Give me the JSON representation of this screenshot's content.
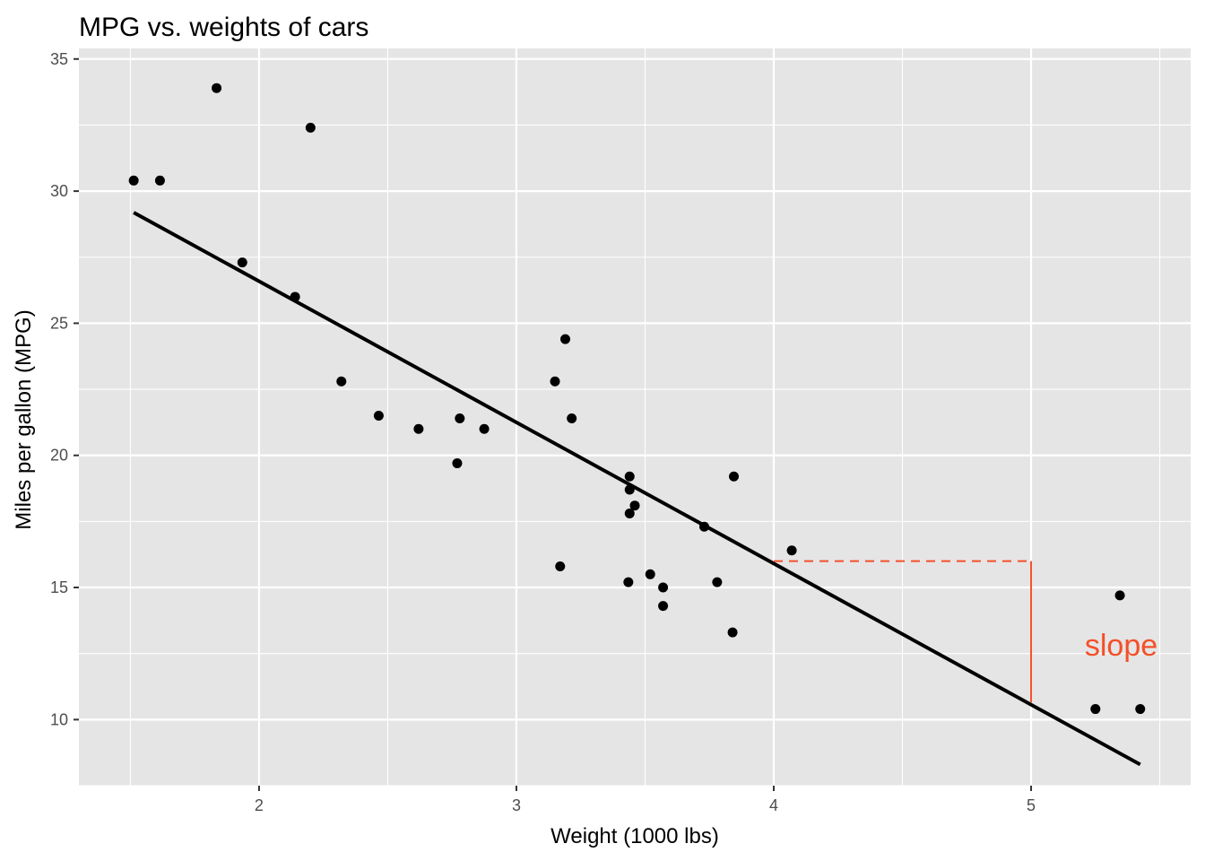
{
  "chart_data": {
    "type": "scatter",
    "title": "MPG vs. weights of cars",
    "xlabel": "Weight (1000 lbs)",
    "ylabel": "Miles per gallon (MPG)",
    "xlim": [
      1.3,
      5.62
    ],
    "ylim": [
      7.5,
      35.4
    ],
    "x_ticks": [
      2,
      3,
      4,
      5
    ],
    "x_tick_labels": [
      "2",
      "3",
      "4",
      "5"
    ],
    "y_ticks": [
      10,
      15,
      20,
      25,
      30,
      35
    ],
    "y_tick_labels": [
      "10",
      "15",
      "20",
      "25",
      "30",
      "35"
    ],
    "grid": true,
    "background_color": "#e5e5e5",
    "point_color": "#000000",
    "points": [
      {
        "x": 2.62,
        "y": 21.0
      },
      {
        "x": 2.875,
        "y": 21.0
      },
      {
        "x": 2.32,
        "y": 22.8
      },
      {
        "x": 3.215,
        "y": 21.4
      },
      {
        "x": 3.44,
        "y": 18.7
      },
      {
        "x": 3.46,
        "y": 18.1
      },
      {
        "x": 3.57,
        "y": 14.3
      },
      {
        "x": 3.19,
        "y": 24.4
      },
      {
        "x": 3.15,
        "y": 22.8
      },
      {
        "x": 3.44,
        "y": 19.2
      },
      {
        "x": 3.44,
        "y": 17.8
      },
      {
        "x": 4.07,
        "y": 16.4
      },
      {
        "x": 3.73,
        "y": 17.3
      },
      {
        "x": 3.78,
        "y": 15.2
      },
      {
        "x": 5.25,
        "y": 10.4
      },
      {
        "x": 5.424,
        "y": 10.4
      },
      {
        "x": 5.345,
        "y": 14.7
      },
      {
        "x": 2.2,
        "y": 32.4
      },
      {
        "x": 1.615,
        "y": 30.4
      },
      {
        "x": 1.835,
        "y": 33.9
      },
      {
        "x": 2.465,
        "y": 21.5
      },
      {
        "x": 3.52,
        "y": 15.5
      },
      {
        "x": 3.435,
        "y": 15.2
      },
      {
        "x": 3.84,
        "y": 13.3
      },
      {
        "x": 3.845,
        "y": 19.2
      },
      {
        "x": 1.935,
        "y": 27.3
      },
      {
        "x": 2.14,
        "y": 26.0
      },
      {
        "x": 1.513,
        "y": 30.4
      },
      {
        "x": 3.17,
        "y": 15.8
      },
      {
        "x": 2.77,
        "y": 19.7
      },
      {
        "x": 3.57,
        "y": 15.0
      },
      {
        "x": 2.78,
        "y": 21.4
      }
    ],
    "regression_line": {
      "x1": 1.513,
      "y1": 29.19,
      "x2": 5.424,
      "y2": 8.3,
      "color": "#000000"
    },
    "annotation": {
      "text": "slope",
      "color": "#f4502a",
      "position": {
        "x": 5.35,
        "y": 12.8
      },
      "horizontal_dashed": {
        "x1": 4,
        "x2": 5,
        "y": 16
      },
      "vertical_solid": {
        "x": 5,
        "y1": 16,
        "y2": 10.65
      }
    }
  }
}
